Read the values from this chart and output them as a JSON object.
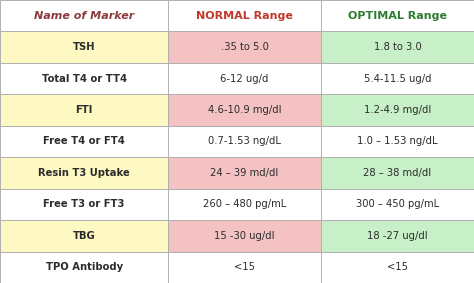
{
  "col_headers": [
    "Name of Marker",
    "NORMAL Range",
    "OPTIMAL Range"
  ],
  "rows": [
    [
      "TSH",
      ".35 to 5.0",
      "1.8 to 3.0"
    ],
    [
      "Total T4 or TT4",
      "6-12 ug/d",
      "5.4-11.5 ug/d"
    ],
    [
      "FTI",
      "4.6-10.9 mg/dl",
      "1.2-4.9 mg/dl"
    ],
    [
      "Free T4 or FT4",
      "0.7-1.53 ng/dL",
      "1.0 – 1.53 ng/dL"
    ],
    [
      "Resin T3 Uptake",
      "24 – 39 md/dl",
      "28 – 38 md/dl"
    ],
    [
      "Free T3 or FT3",
      "260 – 480 pg/mL",
      "300 – 450 pg/mL"
    ],
    [
      "TBG",
      "15 -30 ug/dl",
      "18 -27 ug/dl"
    ],
    [
      "TPO Antibody",
      "<15",
      "<15"
    ]
  ],
  "header_bg": "#ffffff",
  "header_text_color_marker": "#8b3a3a",
  "header_text_color_normal": "#c0392b",
  "header_text_color_optimal": "#2e7d32",
  "row_bg_yellow": "#fef9c3",
  "row_bg_white": "#ffffff",
  "cell_bg_pink": "#f4c2c2",
  "cell_bg_green": "#c8f0c8",
  "cell_bg_white": "#ffffff",
  "border_color": "#b0b0b0",
  "text_color_dark": "#2c2c2c",
  "highlighted_rows": [
    0,
    2,
    4,
    6
  ],
  "fig_bg": "#fdf8f0"
}
